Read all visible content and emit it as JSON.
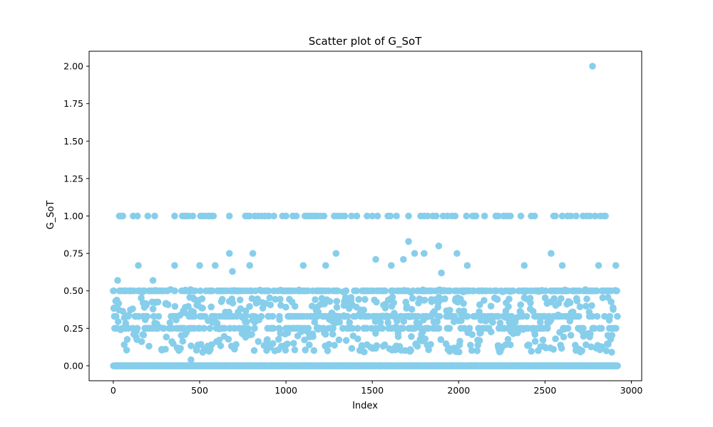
{
  "chart_data": {
    "type": "scatter",
    "title": "Scatter plot of G_SoT",
    "xlabel": "Index",
    "ylabel": "G_SoT",
    "xlim": [
      -140,
      3060
    ],
    "ylim": [
      -0.1,
      2.1
    ],
    "xticks": [
      0,
      500,
      1000,
      1500,
      2000,
      2500,
      3000
    ],
    "xtick_labels": [
      "0",
      "500",
      "1000",
      "1500",
      "2000",
      "2500",
      "3000"
    ],
    "yticks": [
      0.0,
      0.25,
      0.5,
      0.75,
      1.0,
      1.25,
      1.5,
      1.75,
      2.0
    ],
    "ytick_labels": [
      "0.00",
      "0.25",
      "0.50",
      "0.75",
      "1.00",
      "1.25",
      "1.50",
      "1.75",
      "2.00"
    ],
    "grid": false,
    "legend": "none",
    "color": "#87CEEB",
    "n_points": 2921,
    "series": [
      {
        "x_range": [
          0,
          2920
        ],
        "levels": [
          0.0,
          0.25,
          0.33,
          0.5,
          1.0
        ],
        "outliers": [
          {
            "x": 2775,
            "y": 2.0
          },
          {
            "x": 1710,
            "y": 0.83
          },
          {
            "x": 1885,
            "y": 0.8
          },
          {
            "x": 672,
            "y": 0.75
          },
          {
            "x": 808,
            "y": 0.75
          },
          {
            "x": 1290,
            "y": 0.75
          },
          {
            "x": 1745,
            "y": 0.75
          },
          {
            "x": 1800,
            "y": 0.75
          },
          {
            "x": 1990,
            "y": 0.75
          },
          {
            "x": 2535,
            "y": 0.75
          },
          {
            "x": 1520,
            "y": 0.71
          },
          {
            "x": 1680,
            "y": 0.71
          },
          {
            "x": 145,
            "y": 0.67
          },
          {
            "x": 355,
            "y": 0.67
          },
          {
            "x": 500,
            "y": 0.67
          },
          {
            "x": 590,
            "y": 0.67
          },
          {
            "x": 790,
            "y": 0.67
          },
          {
            "x": 1100,
            "y": 0.67
          },
          {
            "x": 1230,
            "y": 0.67
          },
          {
            "x": 1610,
            "y": 0.67
          },
          {
            "x": 2050,
            "y": 0.67
          },
          {
            "x": 2380,
            "y": 0.67
          },
          {
            "x": 2600,
            "y": 0.67
          },
          {
            "x": 2810,
            "y": 0.67
          },
          {
            "x": 2910,
            "y": 0.67
          },
          {
            "x": 690,
            "y": 0.63
          },
          {
            "x": 1900,
            "y": 0.62
          },
          {
            "x": 25,
            "y": 0.57
          },
          {
            "x": 230,
            "y": 0.57
          },
          {
            "x": 450,
            "y": 0.04
          }
        ],
        "ones_x": [
          35,
          45,
          55,
          115,
          140,
          200,
          240,
          355,
          400,
          410,
          420,
          435,
          460,
          505,
          520,
          530,
          550,
          560,
          570,
          580,
          672,
          765,
          780,
          790,
          820,
          840,
          860,
          880,
          900,
          930,
          980,
          1000,
          1040,
          1060,
          1110,
          1120,
          1135,
          1150,
          1165,
          1180,
          1200,
          1220,
          1280,
          1300,
          1320,
          1340,
          1380,
          1410,
          1470,
          1500,
          1530,
          1590,
          1605,
          1640,
          1710,
          1780,
          1800,
          1820,
          1850,
          1870,
          1910,
          1935,
          1960,
          1980,
          2045,
          2080,
          2090,
          2100,
          2150,
          2215,
          2230,
          2260,
          2280,
          2300,
          2360,
          2420,
          2440,
          2550,
          2560,
          2600,
          2630,
          2650,
          2680,
          2720,
          2740,
          2760,
          2790,
          2820,
          2840,
          2850
        ]
      }
    ]
  }
}
